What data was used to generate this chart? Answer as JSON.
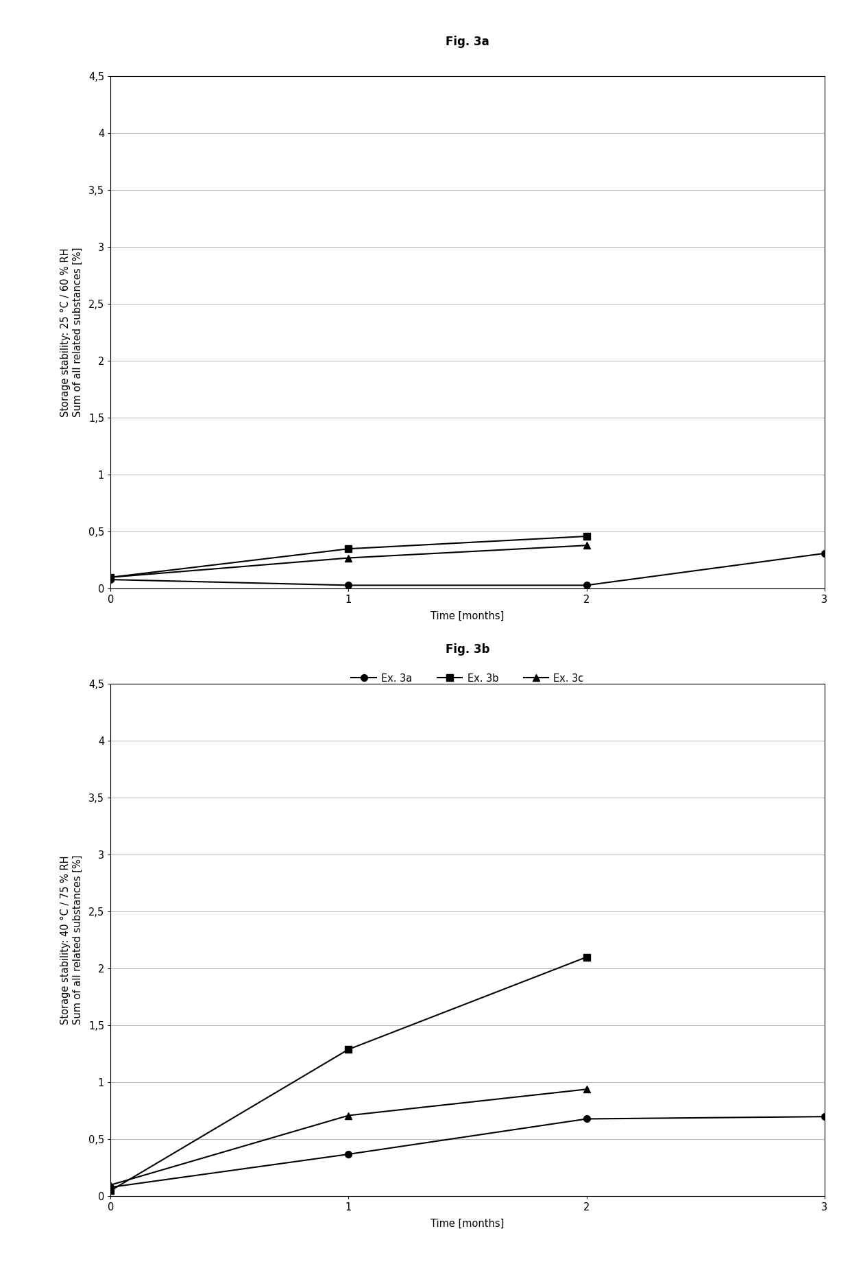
{
  "fig3a": {
    "title": "Fig. 3a",
    "ylabel": "Storage stability: 25 °C / 60 % RH\nSum of all related substances [%]",
    "xlabel": "Time [months]",
    "x": [
      0,
      1,
      2,
      3
    ],
    "series": {
      "Ex. 3a": [
        0.08,
        0.03,
        0.03,
        0.31
      ],
      "Ex. 3b": [
        0.1,
        0.35,
        0.46,
        null
      ],
      "Ex. 3c": [
        0.1,
        0.27,
        0.38,
        null
      ]
    },
    "ylim": [
      0,
      4.5
    ],
    "yticks": [
      0,
      0.5,
      1.0,
      1.5,
      2.0,
      2.5,
      3.0,
      3.5,
      4.0,
      4.5
    ],
    "ytick_labels": [
      "0",
      "0,5",
      "1",
      "1,5",
      "2",
      "2,5",
      "3",
      "3,5",
      "4",
      "4,5"
    ],
    "xlim": [
      0,
      3
    ],
    "xticks": [
      0,
      1,
      2,
      3
    ]
  },
  "fig3b": {
    "title": "Fig. 3b",
    "ylabel": "Storage stability: 40 °C / 75 % RH\nSum of all related substances [%]",
    "xlabel": "Time [months]",
    "x": [
      0,
      1,
      2,
      3
    ],
    "series": {
      "Ex. 3a": [
        0.08,
        0.37,
        0.68,
        0.7
      ],
      "Ex. 3b": [
        0.05,
        1.29,
        2.1,
        null
      ],
      "Ex. 3c": [
        0.1,
        0.71,
        0.94,
        null
      ]
    },
    "ylim": [
      0,
      4.5
    ],
    "yticks": [
      0,
      0.5,
      1.0,
      1.5,
      2.0,
      2.5,
      3.0,
      3.5,
      4.0,
      4.5
    ],
    "ytick_labels": [
      "0",
      "0,5",
      "1",
      "1,5",
      "2",
      "2,5",
      "3",
      "3,5",
      "4",
      "4,5"
    ],
    "xlim": [
      0,
      3
    ],
    "xticks": [
      0,
      1,
      2,
      3
    ]
  },
  "series_styles": {
    "Ex. 3a": {
      "marker": "o",
      "color": "#000000",
      "linestyle": "-",
      "markersize": 7,
      "linewidth": 1.5
    },
    "Ex. 3b": {
      "marker": "s",
      "color": "#000000",
      "linestyle": "-",
      "markersize": 7,
      "linewidth": 1.5
    },
    "Ex. 3c": {
      "marker": "^",
      "color": "#000000",
      "linestyle": "-",
      "markersize": 7,
      "linewidth": 1.5
    }
  },
  "background_color": "#ffffff",
  "figure_background_color": "#ffffff",
  "title_fontsize": 12,
  "label_fontsize": 10.5,
  "tick_fontsize": 10.5,
  "legend_fontsize": 10.5
}
